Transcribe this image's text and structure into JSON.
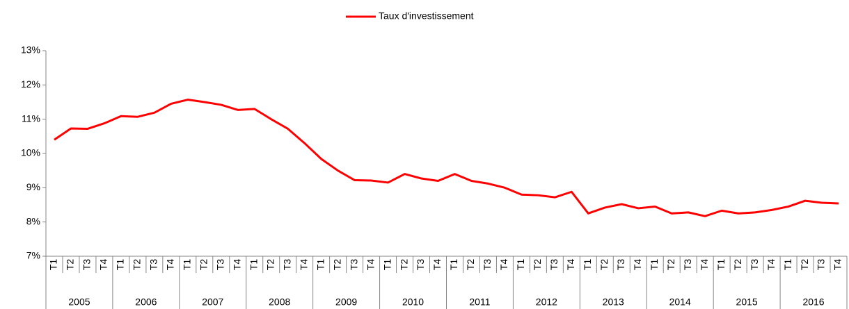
{
  "chart_data": {
    "type": "line",
    "categories": [
      "T1",
      "T2",
      "T3",
      "T4",
      "T1",
      "T2",
      "T3",
      "T4",
      "T1",
      "T2",
      "T3",
      "T4",
      "T1",
      "T2",
      "T3",
      "T4",
      "T1",
      "T2",
      "T3",
      "T4",
      "T1",
      "T2",
      "T3",
      "T4",
      "T1",
      "T2",
      "T3",
      "T4",
      "T1",
      "T2",
      "T3",
      "T4",
      "T1",
      "T2",
      "T3",
      "T4",
      "T1",
      "T2",
      "T3",
      "T4",
      "T1",
      "T2",
      "T3",
      "T4",
      "T1",
      "T2",
      "T3",
      "T4"
    ],
    "category_groups": [
      "2005",
      "2006",
      "2007",
      "2008",
      "2009",
      "2010",
      "2011",
      "2012",
      "2013",
      "2014",
      "2015",
      "2016"
    ],
    "series": [
      {
        "name": "Taux d'investissement",
        "color": "#ff0000",
        "values": [
          10.4,
          10.73,
          10.72,
          10.88,
          11.09,
          11.07,
          11.19,
          11.45,
          11.57,
          11.5,
          11.42,
          11.27,
          11.3,
          11.0,
          10.72,
          10.3,
          9.84,
          9.5,
          9.22,
          9.21,
          9.15,
          9.4,
          9.27,
          9.2,
          9.4,
          9.2,
          9.12,
          9.0,
          8.8,
          8.78,
          8.72,
          8.88,
          8.25,
          8.42,
          8.52,
          8.4,
          8.45,
          8.25,
          8.28,
          8.17,
          8.33,
          8.25,
          8.28,
          8.35,
          8.45,
          8.62,
          8.56,
          8.54
        ]
      }
    ],
    "ylim": [
      7,
      13
    ],
    "yticks": [
      {
        "value": 7,
        "label": "7%"
      },
      {
        "value": 8,
        "label": "8%"
      },
      {
        "value": 9,
        "label": "9%"
      },
      {
        "value": 10,
        "label": "10%"
      },
      {
        "value": 11,
        "label": "11%"
      },
      {
        "value": 12,
        "label": "12%"
      },
      {
        "value": 13,
        "label": "13%"
      }
    ],
    "legend": "top"
  }
}
